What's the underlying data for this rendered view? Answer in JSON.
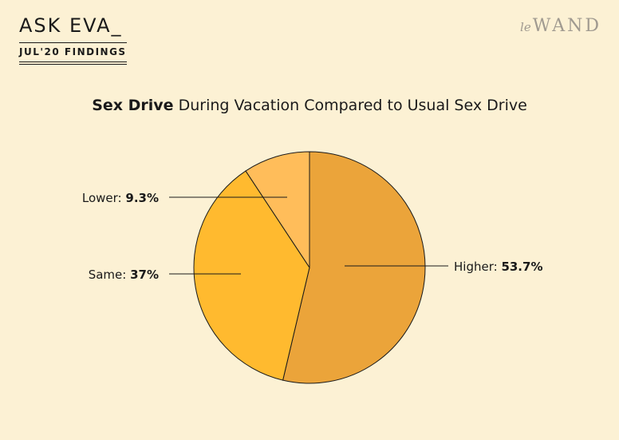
{
  "header": {
    "title": "ASK EVA_",
    "subtitle": "JUL'20 FINDINGS",
    "brand_prefix": "le",
    "brand_name": "WAND"
  },
  "chart_data": {
    "type": "pie",
    "title_bold": "Sex Drive",
    "title_rest": "During Vacation Compared to Usual Sex Drive",
    "slices": [
      {
        "label": "Higher:",
        "value": 53.7,
        "display": "53.7%",
        "color": "#eba43a"
      },
      {
        "label": "Same:",
        "value": 37,
        "display": "37%",
        "color": "#ffba2f"
      },
      {
        "label": "Lower:",
        "value": 9.3,
        "display": "9.3%",
        "color": "#ffbd5a"
      }
    ]
  }
}
